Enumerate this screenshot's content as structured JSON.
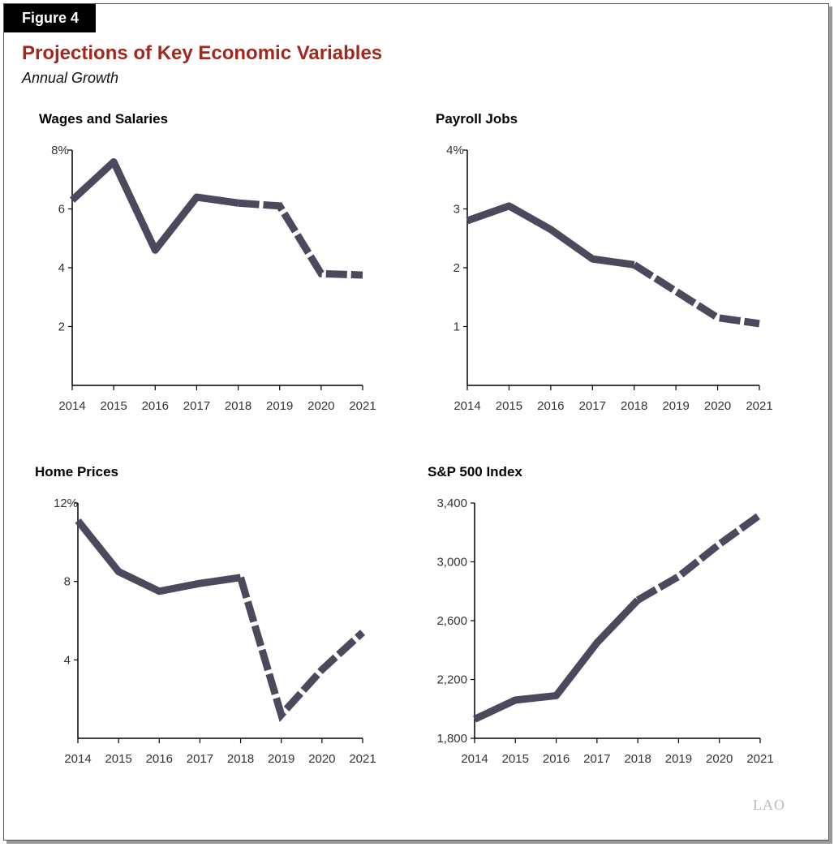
{
  "figure_label": "Figure 4",
  "title": "Projections of Key Economic Variables",
  "subtitle": "Annual Growth",
  "logo_text": "LAO",
  "line_color": "#4a4a5c",
  "title_color": "#a0281e",
  "chart_data": [
    {
      "type": "line",
      "title": "Wages and Salaries",
      "categories": [
        "2014",
        "2015",
        "2016",
        "2017",
        "2018",
        "2019",
        "2020",
        "2021"
      ],
      "values": [
        6.3,
        7.6,
        4.6,
        6.4,
        6.2,
        6.1,
        3.8,
        3.75
      ],
      "projected_from": "2018",
      "ylim": [
        0,
        8
      ],
      "yticks": [
        2,
        4,
        6,
        8
      ],
      "ytick_labels": [
        "2",
        "4",
        "6",
        "8%"
      ]
    },
    {
      "type": "line",
      "title": "Payroll Jobs",
      "categories": [
        "2014",
        "2015",
        "2016",
        "2017",
        "2018",
        "2019",
        "2020",
        "2021"
      ],
      "values": [
        2.8,
        3.05,
        2.65,
        2.15,
        2.05,
        1.6,
        1.15,
        1.05
      ],
      "projected_from": "2018",
      "ylim": [
        0,
        4
      ],
      "yticks": [
        1,
        2,
        3,
        4
      ],
      "ytick_labels": [
        "1",
        "2",
        "3",
        "4%"
      ]
    },
    {
      "type": "line",
      "title": "Home Prices",
      "categories": [
        "2014",
        "2015",
        "2016",
        "2017",
        "2018",
        "2019",
        "2020",
        "2021"
      ],
      "values": [
        11.1,
        8.5,
        7.5,
        7.9,
        8.2,
        1.2,
        3.5,
        5.4
      ],
      "projected_from": "2018",
      "ylim": [
        0,
        12
      ],
      "yticks": [
        4,
        8,
        12
      ],
      "ytick_labels": [
        "4",
        "8",
        "12%"
      ]
    },
    {
      "type": "line",
      "title": "S&P 500 Index",
      "categories": [
        "2014",
        "2015",
        "2016",
        "2017",
        "2018",
        "2019",
        "2020",
        "2021"
      ],
      "values": [
        1930,
        2060,
        2090,
        2450,
        2740,
        2900,
        3120,
        3320
      ],
      "projected_from": "2018",
      "ylim": [
        1800,
        3400
      ],
      "yticks": [
        1800,
        2200,
        2600,
        3000,
        3400
      ],
      "ytick_labels": [
        "1,800",
        "2,200",
        "2,600",
        "3,000",
        "3,400"
      ]
    }
  ]
}
